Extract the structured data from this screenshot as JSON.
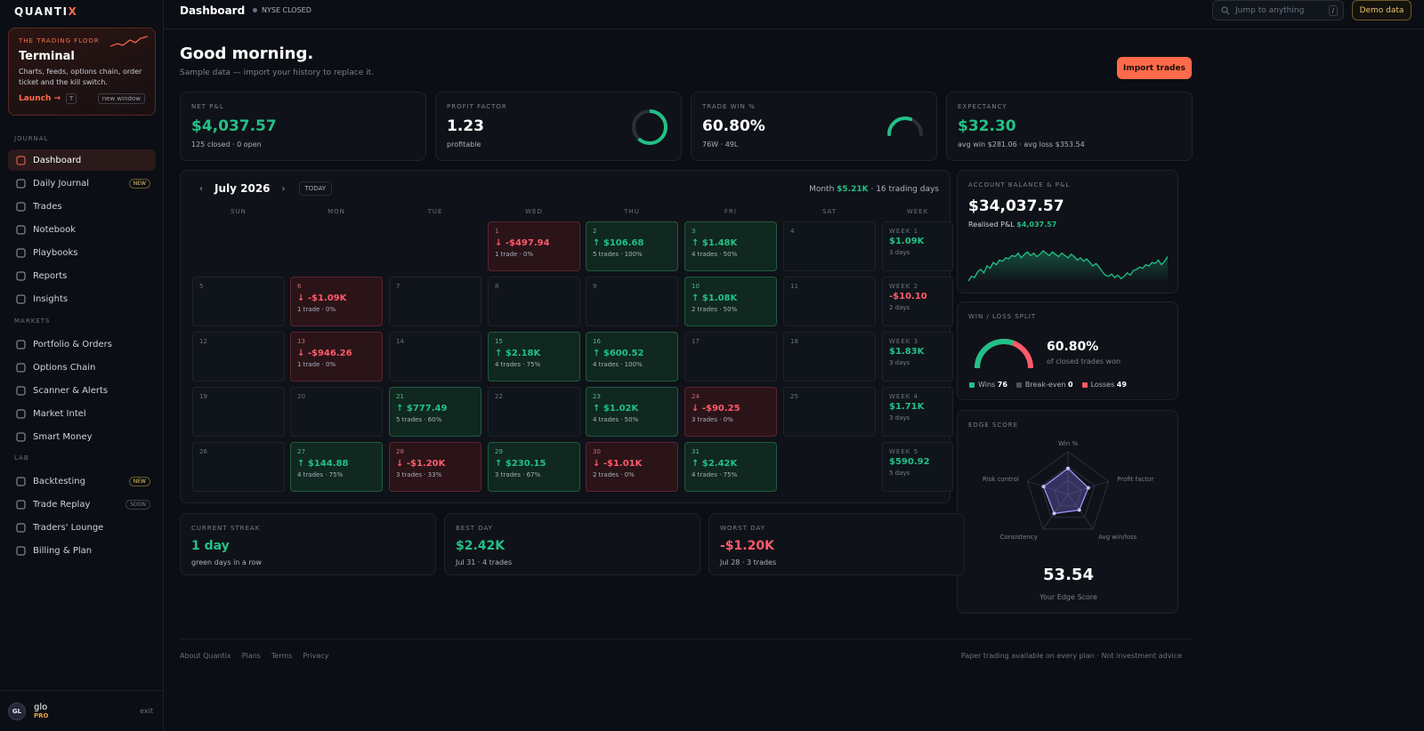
{
  "app": {
    "logo_a": "QUANTI",
    "logo_b": "X"
  },
  "promo": {
    "kicker": "THE TRADING FLOOR",
    "title": "Terminal",
    "desc": "Charts, feeds, options chain, order ticket and the kill switch.",
    "launch": "Launch →",
    "key": "T",
    "new_window": "new window"
  },
  "sidebar": {
    "sections": {
      "journal": "JOURNAL",
      "markets": "MARKETS",
      "lab": "LAB"
    },
    "items": [
      {
        "label": "Dashboard",
        "icon": "grid-icon"
      },
      {
        "label": "Daily Journal",
        "icon": "calendar-icon",
        "badge": "NEW"
      },
      {
        "label": "Trades",
        "icon": "bar-chart-icon"
      },
      {
        "label": "Notebook",
        "icon": "book-icon"
      },
      {
        "label": "Playbooks",
        "icon": "playbook-icon"
      },
      {
        "label": "Reports",
        "icon": "document-icon"
      },
      {
        "label": "Insights",
        "icon": "bolt-icon"
      },
      {
        "label": "Portfolio & Orders",
        "icon": "portfolio-icon"
      },
      {
        "label": "Options Chain",
        "icon": "chain-icon"
      },
      {
        "label": "Scanner & Alerts",
        "icon": "scanner-icon"
      },
      {
        "label": "Market Intel",
        "icon": "sun-icon"
      },
      {
        "label": "Smart Money",
        "icon": "trend-icon"
      },
      {
        "label": "Backtesting",
        "icon": "history-icon",
        "badge": "NEW"
      },
      {
        "label": "Trade Replay",
        "icon": "play-icon",
        "badge": "SOON"
      },
      {
        "label": "Traders' Lounge",
        "icon": "users-icon"
      },
      {
        "label": "Billing & Plan",
        "icon": "billing-icon"
      }
    ]
  },
  "user": {
    "initials": "GL",
    "name": "glo",
    "plan": "PRO",
    "exit": "exit"
  },
  "header": {
    "title": "Dashboard",
    "market": "NYSE CLOSED",
    "search_placeholder": "Jump to anything",
    "search_key": "/",
    "demo": "Demo data"
  },
  "greeting": {
    "title": "Good morning.",
    "subtitle": "Sample data — import your history to replace it.",
    "import": "Import trades"
  },
  "kpis": [
    {
      "label": "NET P&L",
      "value": "$4,037.57",
      "sub": "125 closed · 0 open",
      "color": "g"
    },
    {
      "label": "PROFIT FACTOR",
      "value": "1.23",
      "sub": "profitable",
      "color": "w"
    },
    {
      "label": "TRADE WIN %",
      "value": "60.80%",
      "sub": "76W · 49L",
      "color": "w"
    },
    {
      "label": "EXPECTANCY",
      "value": "$32.30",
      "sub": "avg win $281.06 · avg loss $353.54",
      "color": "g"
    }
  ],
  "calendar": {
    "month": "July 2026",
    "today": "TODAY",
    "sum_label": "Month",
    "sum_value": "$5.21K",
    "sum_days": "· 16 trading days",
    "dow": [
      "SUN",
      "MON",
      "TUE",
      "WED",
      "THU",
      "FRI",
      "SAT",
      "WEEK"
    ],
    "days": [
      {
        "d": "1",
        "v": "↓ -$497.94",
        "s": "1 trade · 0%",
        "t": "r",
        "c": 3,
        "w": 0
      },
      {
        "d": "2",
        "v": "↑ $106.68",
        "s": "5 trades · 100%",
        "t": "g",
        "c": 4,
        "w": 0
      },
      {
        "d": "3",
        "v": "↑ $1.48K",
        "s": "4 trades · 50%",
        "t": "g",
        "c": 5,
        "w": 0
      },
      {
        "d": "4",
        "c": 6,
        "w": 0
      },
      {
        "d": "5",
        "c": 0,
        "w": 1
      },
      {
        "d": "6",
        "v": "↓ -$1.09K",
        "s": "1 trade · 0%",
        "t": "r",
        "c": 1,
        "w": 1
      },
      {
        "d": "7",
        "c": 2,
        "w": 1
      },
      {
        "d": "8",
        "c": 3,
        "w": 1
      },
      {
        "d": "9",
        "c": 4,
        "w": 1
      },
      {
        "d": "10",
        "v": "↑ $1.08K",
        "s": "2 trades · 50%",
        "t": "g",
        "c": 5,
        "w": 1
      },
      {
        "d": "11",
        "c": 6,
        "w": 1
      },
      {
        "d": "12",
        "c": 0,
        "w": 2
      },
      {
        "d": "13",
        "v": "↓ -$946.26",
        "s": "1 trade · 0%",
        "t": "r",
        "c": 1,
        "w": 2
      },
      {
        "d": "14",
        "c": 2,
        "w": 2
      },
      {
        "d": "15",
        "v": "↑ $2.18K",
        "s": "4 trades · 75%",
        "t": "g",
        "c": 3,
        "w": 2
      },
      {
        "d": "16",
        "v": "↑ $600.52",
        "s": "4 trades · 100%",
        "t": "g",
        "c": 4,
        "w": 2
      },
      {
        "d": "17",
        "c": 5,
        "w": 2
      },
      {
        "d": "18",
        "c": 6,
        "w": 2
      },
      {
        "d": "19",
        "c": 0,
        "w": 3
      },
      {
        "d": "20",
        "c": 1,
        "w": 3
      },
      {
        "d": "21",
        "v": "↑ $777.49",
        "s": "5 trades · 60%",
        "t": "g",
        "c": 2,
        "w": 3
      },
      {
        "d": "22",
        "c": 3,
        "w": 3
      },
      {
        "d": "23",
        "v": "↑ $1.02K",
        "s": "4 trades · 50%",
        "t": "g",
        "c": 4,
        "w": 3
      },
      {
        "d": "24",
        "v": "↓ -$90.25",
        "s": "3 trades · 0%",
        "t": "r",
        "c": 5,
        "w": 3
      },
      {
        "d": "25",
        "c": 6,
        "w": 3
      },
      {
        "d": "26",
        "c": 0,
        "w": 4
      },
      {
        "d": "27",
        "v": "↑ $144.88",
        "s": "4 trades · 75%",
        "t": "g",
        "c": 1,
        "w": 4
      },
      {
        "d": "28",
        "v": "↓ -$1.20K",
        "s": "3 trades · 33%",
        "t": "r",
        "c": 2,
        "w": 4
      },
      {
        "d": "29",
        "v": "↑ $230.15",
        "s": "3 trades · 67%",
        "t": "g",
        "c": 3,
        "w": 4
      },
      {
        "d": "30",
        "v": "↓ -$1.01K",
        "s": "2 trades · 0%",
        "t": "r",
        "c": 4,
        "w": 4
      },
      {
        "d": "31",
        "v": "↑ $2.42K",
        "s": "4 trades · 75%",
        "t": "g",
        "c": 5,
        "w": 4
      }
    ],
    "weeks": [
      {
        "l": "WEEK 1",
        "v": "$1.09K",
        "d": "3 days",
        "t": "g"
      },
      {
        "l": "WEEK 2",
        "v": "-$10.10",
        "d": "2 days",
        "t": "r"
      },
      {
        "l": "WEEK 3",
        "v": "$1.83K",
        "d": "3 days",
        "t": "g"
      },
      {
        "l": "WEEK 4",
        "v": "$1.71K",
        "d": "3 days",
        "t": "g"
      },
      {
        "l": "WEEK 5",
        "v": "$590.92",
        "d": "5 days",
        "t": "g"
      }
    ]
  },
  "stats": [
    {
      "label": "CURRENT STREAK",
      "value": "1 day",
      "sub": "green days in a row",
      "color": "g"
    },
    {
      "label": "BEST DAY",
      "value": "$2.42K",
      "sub": "Jul 31 · 4 trades",
      "color": "g"
    },
    {
      "label": "WORST DAY",
      "value": "-$1.20K",
      "sub": "Jul 28 · 3 trades",
      "color": "r"
    }
  ],
  "balance": {
    "label": "ACCOUNT BALANCE & P&L",
    "value": "$34,037.57",
    "realised_label": "Realised P&L",
    "realised": "$4,037.57",
    "series": [
      20,
      24,
      23,
      28,
      30,
      27,
      33,
      31,
      36,
      34,
      38,
      37,
      40,
      39,
      42,
      41,
      44,
      40,
      43,
      45,
      42,
      44,
      41,
      43,
      46,
      44,
      42,
      45,
      43,
      41,
      44,
      42,
      40,
      43,
      41,
      38,
      40,
      37,
      39,
      36,
      33,
      35,
      32,
      28,
      25,
      24,
      26,
      23,
      25,
      22,
      24,
      27,
      25,
      29,
      30,
      32,
      31,
      34,
      33,
      36,
      35,
      38,
      34,
      37,
      41
    ]
  },
  "winloss": {
    "label": "WIN / LOSS SPLIT",
    "pct": "60.80%",
    "sub": "of closed trades won",
    "win_frac": 0.608,
    "wins_label": "Wins",
    "wins": "76",
    "be_label": "Break-even",
    "be": "0",
    "loss_label": "Losses",
    "losses": "49",
    "colors": {
      "win": "#22c087",
      "loss": "#ff5a6a",
      "be": "#4b5260"
    }
  },
  "edge": {
    "label": "EDGE SCORE",
    "score": "53.54",
    "score_label": "Your Edge Score",
    "axes": [
      "Win %",
      "Profit factor",
      "Avg win/loss",
      "Consistency",
      "Risk control"
    ],
    "values": [
      0.61,
      0.5,
      0.45,
      0.55,
      0.6
    ]
  },
  "donuts": {
    "profit_factor": 0.62,
    "win_pct": 0.608
  },
  "footer": {
    "links": [
      "About Quantix",
      "Plans",
      "Terms",
      "Privacy"
    ],
    "note": "Paper trading available on every plan · Not investment advice"
  }
}
